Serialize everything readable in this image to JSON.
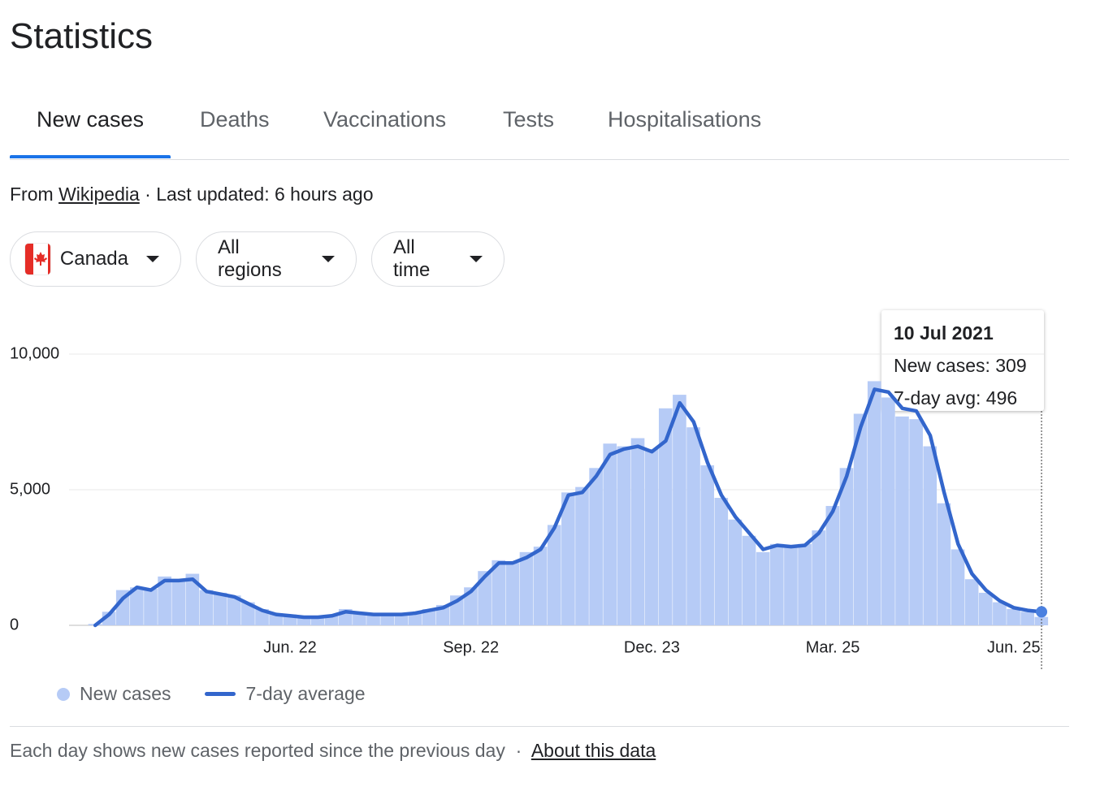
{
  "header": {
    "title": "Statistics"
  },
  "tabs": [
    "New cases",
    "Deaths",
    "Vaccinations",
    "Tests",
    "Hospitalisations"
  ],
  "source": {
    "prefix": "From",
    "link": "Wikipedia",
    "updated": "· Last updated: 6 hours ago"
  },
  "filters": [
    "Canada",
    "All regions",
    "All time"
  ],
  "tooltip": {
    "title": "10 Jul 2021",
    "items": [
      "New cases: 309",
      "7-day avg: 496"
    ]
  },
  "footer": {
    "text": "Each day shows new cases reported since the previous day",
    "separator": "·",
    "link": "About this data"
  },
  "chart_data": {
    "type": "bar",
    "categories": [
      null,
      null,
      null,
      null,
      null,
      null,
      null,
      null,
      null,
      null,
      null,
      null,
      null,
      null,
      "Jun. 22",
      null,
      null,
      null,
      null,
      null,
      null,
      null,
      null,
      null,
      null,
      null,
      null,
      "Sep. 22",
      null,
      null,
      null,
      null,
      null,
      null,
      null,
      null,
      null,
      null,
      null,
      null,
      "Dec. 23",
      null,
      null,
      null,
      null,
      null,
      null,
      null,
      null,
      null,
      null,
      null,
      null,
      "Mar. 25",
      null,
      null,
      null,
      null,
      null,
      null,
      null,
      null,
      null,
      null,
      null,
      null,
      "Jun. 25",
      null,
      null
    ],
    "series": [
      {
        "name": "New cases",
        "color": "#b6cbf6",
        "type": "bar",
        "values": [
          50,
          500,
          1300,
          1400,
          1350,
          1800,
          1700,
          1900,
          1300,
          1200,
          1100,
          850,
          600,
          450,
          400,
          350,
          320,
          380,
          600,
          480,
          420,
          450,
          420,
          480,
          600,
          750,
          1100,
          1400,
          2000,
          2400,
          2300,
          2700,
          2900,
          3700,
          4900,
          5100,
          5800,
          6700,
          6600,
          6900,
          6500,
          8000,
          8500,
          7300,
          5900,
          4700,
          3900,
          3300,
          2700,
          3000,
          2900,
          3000,
          3500,
          4400,
          5800,
          7800,
          9000,
          8400,
          7700,
          7600,
          6600,
          4500,
          2800,
          1700,
          1200,
          850,
          600,
          500,
          309
        ]
      },
      {
        "name": "7-day average",
        "color": "#3366cc",
        "type": "line",
        "values": [
          0,
          400,
          1000,
          1400,
          1300,
          1650,
          1650,
          1700,
          1250,
          1150,
          1050,
          800,
          550,
          400,
          350,
          300,
          300,
          350,
          500,
          450,
          400,
          400,
          400,
          450,
          550,
          650,
          900,
          1250,
          1800,
          2300,
          2300,
          2500,
          2800,
          3600,
          4800,
          4900,
          5500,
          6300,
          6500,
          6600,
          6400,
          6800,
          8200,
          7500,
          6000,
          4800,
          4000,
          3400,
          2800,
          2950,
          2900,
          2950,
          3400,
          4200,
          5500,
          7300,
          8700,
          8600,
          8000,
          7900,
          7000,
          4900,
          3000,
          1900,
          1300,
          900,
          650,
          550,
          496
        ]
      }
    ],
    "ylim": [
      0,
      10000
    ],
    "yticks": [
      0,
      {
        "value": 5000,
        "label": "5,000"
      },
      {
        "value": 10000,
        "label": "10,000"
      }
    ],
    "grid": true
  }
}
